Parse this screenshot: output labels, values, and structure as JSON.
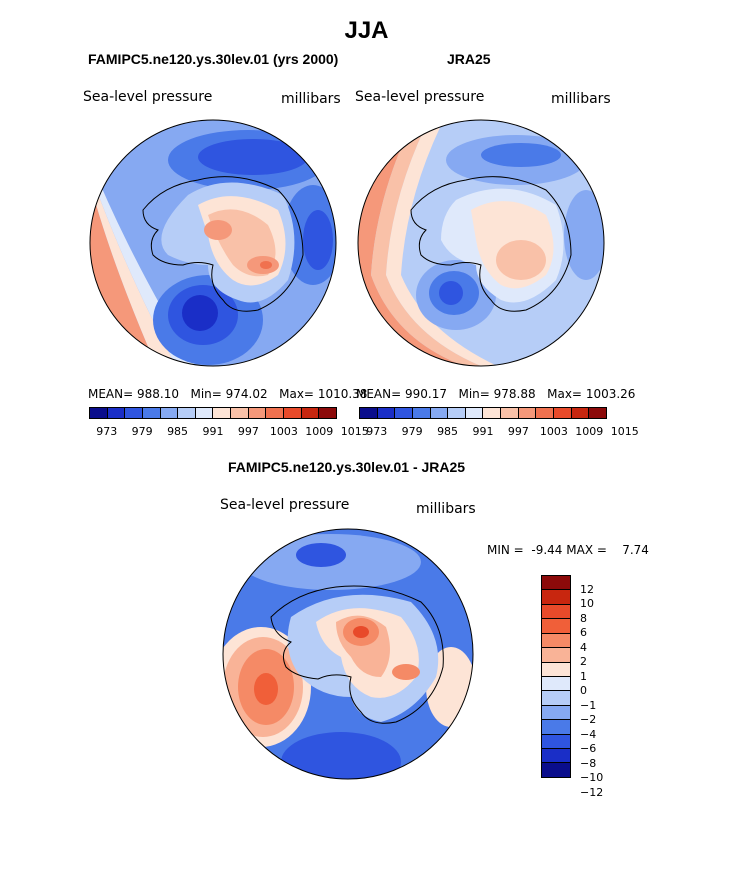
{
  "page_title": "JJA",
  "palette": {
    "abs": [
      "#0a0d8c",
      "#1a2ec7",
      "#2f55e0",
      "#4a7ae8",
      "#86a9f2",
      "#b6cdf7",
      "#dfe9fb",
      "#fde4d6",
      "#f9c1a8",
      "#f5987a",
      "#f0714f",
      "#e84a2a",
      "#c8260f",
      "#8c0a0a"
    ],
    "diff": [
      "#8c0a0a",
      "#c8260f",
      "#e84a2a",
      "#f05f39",
      "#f58a66",
      "#f9b397",
      "#fde4d6",
      "#dfe9fb",
      "#b6cdf7",
      "#86a9f2",
      "#4a7ae8",
      "#2f55e0",
      "#1a2ec7",
      "#0a0d8c"
    ]
  },
  "chart_data": [
    {
      "type": "heatmap",
      "title": "FAMIPC5.ne120.ys.30lev.01 (yrs 2000)",
      "variable": "Sea-level pressure",
      "units": "millibars",
      "stats": {
        "mean": "988.10",
        "min": "974.02",
        "max": "1010.38"
      },
      "colorbar_ticks": [
        "973",
        "979",
        "985",
        "991",
        "997",
        "1003",
        "1009",
        "1015"
      ]
    },
    {
      "type": "heatmap",
      "title": "JRA25",
      "variable": "Sea-level pressure",
      "units": "millibars",
      "stats": {
        "mean": "990.17",
        "min": "978.88",
        "max": "1003.26"
      },
      "colorbar_ticks": [
        "973",
        "979",
        "985",
        "991",
        "997",
        "1003",
        "1009",
        "1015"
      ]
    },
    {
      "type": "heatmap",
      "title": "FAMIPC5.ne120.ys.30lev.01 - JRA25",
      "variable": "Sea-level pressure",
      "units": "millibars",
      "stats": {
        "min": "-9.44",
        "max": "7.74"
      },
      "colorbar_ticks": [
        "12",
        "10",
        "8",
        "6",
        "4",
        "2",
        "1",
        "0",
        "−1",
        "−2",
        "−4",
        "−6",
        "−8",
        "−10",
        "−12"
      ]
    }
  ],
  "labels": {
    "mean_prefix": "MEAN=",
    "min_prefix_abs": "Min=",
    "max_prefix_abs": "Max=",
    "min_prefix_diff": "MIN =",
    "max_prefix_diff": "MAX ="
  }
}
